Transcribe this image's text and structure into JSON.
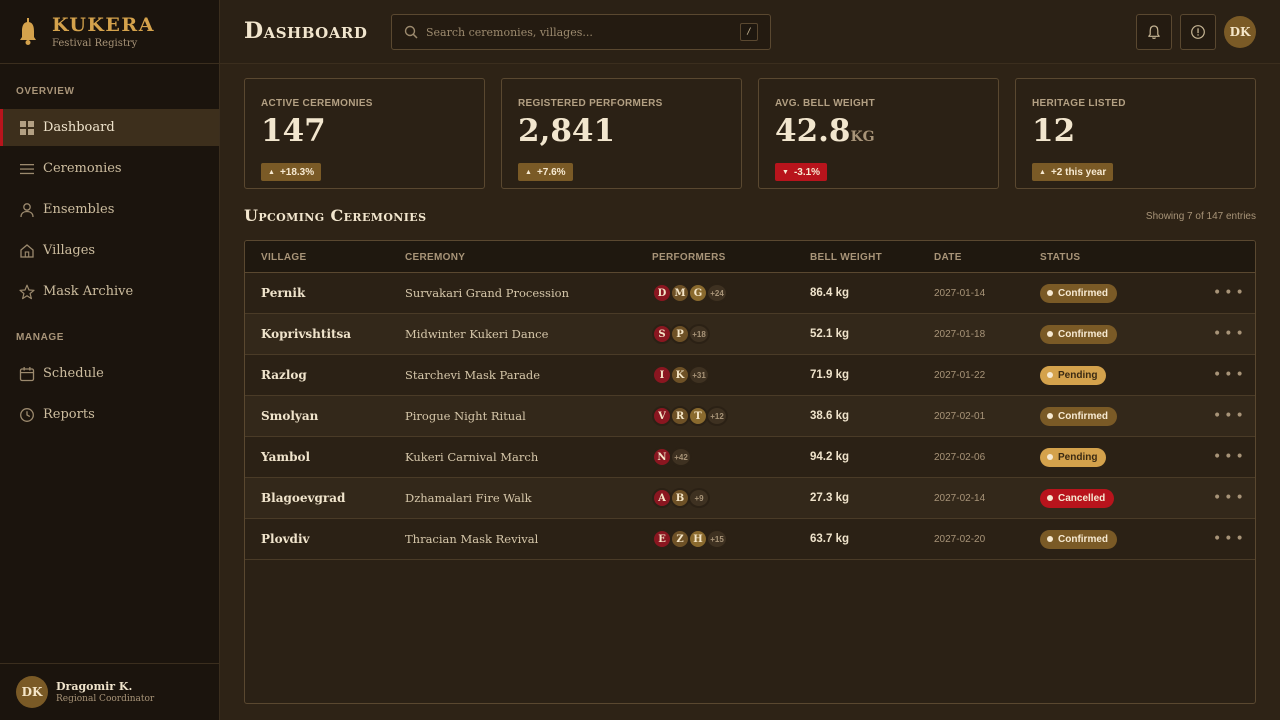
{
  "brand": {
    "name": "KUKERA",
    "subtitle": "Festival Registry"
  },
  "sidebar": {
    "sections": [
      "OVERVIEW",
      "MANAGE"
    ],
    "items": [
      {
        "label": "Dashboard",
        "icon": "grid-icon",
        "active": true
      },
      {
        "label": "Ceremonies",
        "icon": "list-icon"
      },
      {
        "label": "Ensembles",
        "icon": "person-icon"
      },
      {
        "label": "Villages",
        "icon": "home-icon"
      },
      {
        "label": "Mask Archive",
        "icon": "star-icon"
      },
      {
        "label": "Schedule",
        "icon": "calendar-icon"
      },
      {
        "label": "Reports",
        "icon": "clock-icon"
      }
    ]
  },
  "user": {
    "initials": "DK",
    "name": "Dragomir K.",
    "role": "Regional Coordinator"
  },
  "header": {
    "title": "Dashboard",
    "search_placeholder": "Search ceremonies, villages...",
    "shortcut": "/",
    "avatar_initials": "DK"
  },
  "stats": [
    {
      "label": "ACTIVE CEREMONIES",
      "value": "147",
      "unit": "",
      "delta": "+18.3%",
      "direction": "up"
    },
    {
      "label": "REGISTERED PERFORMERS",
      "value": "2,841",
      "unit": "",
      "delta": "+7.6%",
      "direction": "up"
    },
    {
      "label": "AVG. BELL WEIGHT",
      "value": "42.8",
      "unit": "KG",
      "delta": "-3.1%",
      "direction": "down"
    },
    {
      "label": "HERITAGE LISTED",
      "value": "12",
      "unit": "",
      "delta": "+2 this year",
      "direction": "up"
    }
  ],
  "section": {
    "title": "Upcoming Ceremonies",
    "entries_text": "Showing 7 of 147 entries"
  },
  "table": {
    "columns": [
      "VILLAGE",
      "CEREMONY",
      "PERFORMERS",
      "BELL WEIGHT",
      "DATE",
      "STATUS"
    ],
    "rows": [
      {
        "village": "Pernik",
        "ceremony": "Survakari Grand Procession",
        "performers": [
          "D",
          "M",
          "G"
        ],
        "more": "+24",
        "weight": "86.4 kg",
        "date": "2027-01-14",
        "status": "Confirmed"
      },
      {
        "village": "Koprivshtitsa",
        "ceremony": "Midwinter Kukeri Dance",
        "performers": [
          "S",
          "P"
        ],
        "more": "+18",
        "weight": "52.1 kg",
        "date": "2027-01-18",
        "status": "Confirmed"
      },
      {
        "village": "Razlog",
        "ceremony": "Starchevi Mask Parade",
        "performers": [
          "I",
          "K"
        ],
        "more": "+31",
        "weight": "71.9 kg",
        "date": "2027-01-22",
        "status": "Pending"
      },
      {
        "village": "Smolyan",
        "ceremony": "Pirogue Night Ritual",
        "performers": [
          "V",
          "R",
          "T"
        ],
        "more": "+12",
        "weight": "38.6 kg",
        "date": "2027-02-01",
        "status": "Confirmed"
      },
      {
        "village": "Yambol",
        "ceremony": "Kukeri Carnival March",
        "performers": [
          "N"
        ],
        "more": "+42",
        "weight": "94.2 kg",
        "date": "2027-02-06",
        "status": "Pending"
      },
      {
        "village": "Blagoevgrad",
        "ceremony": "Dzhamalari Fire Walk",
        "performers": [
          "A",
          "B"
        ],
        "more": "+9",
        "weight": "27.3 kg",
        "date": "2027-02-14",
        "status": "Cancelled"
      },
      {
        "village": "Plovdiv",
        "ceremony": "Thracian Mask Revival",
        "performers": [
          "E",
          "Z",
          "H"
        ],
        "more": "+15",
        "weight": "63.7 kg",
        "date": "2027-02-20",
        "status": "Confirmed"
      }
    ]
  },
  "colors": {
    "accent_gold": "#d4a24c",
    "accent_red": "#b8141c",
    "bronze": "#7a5a26",
    "background": "#2e2316"
  }
}
